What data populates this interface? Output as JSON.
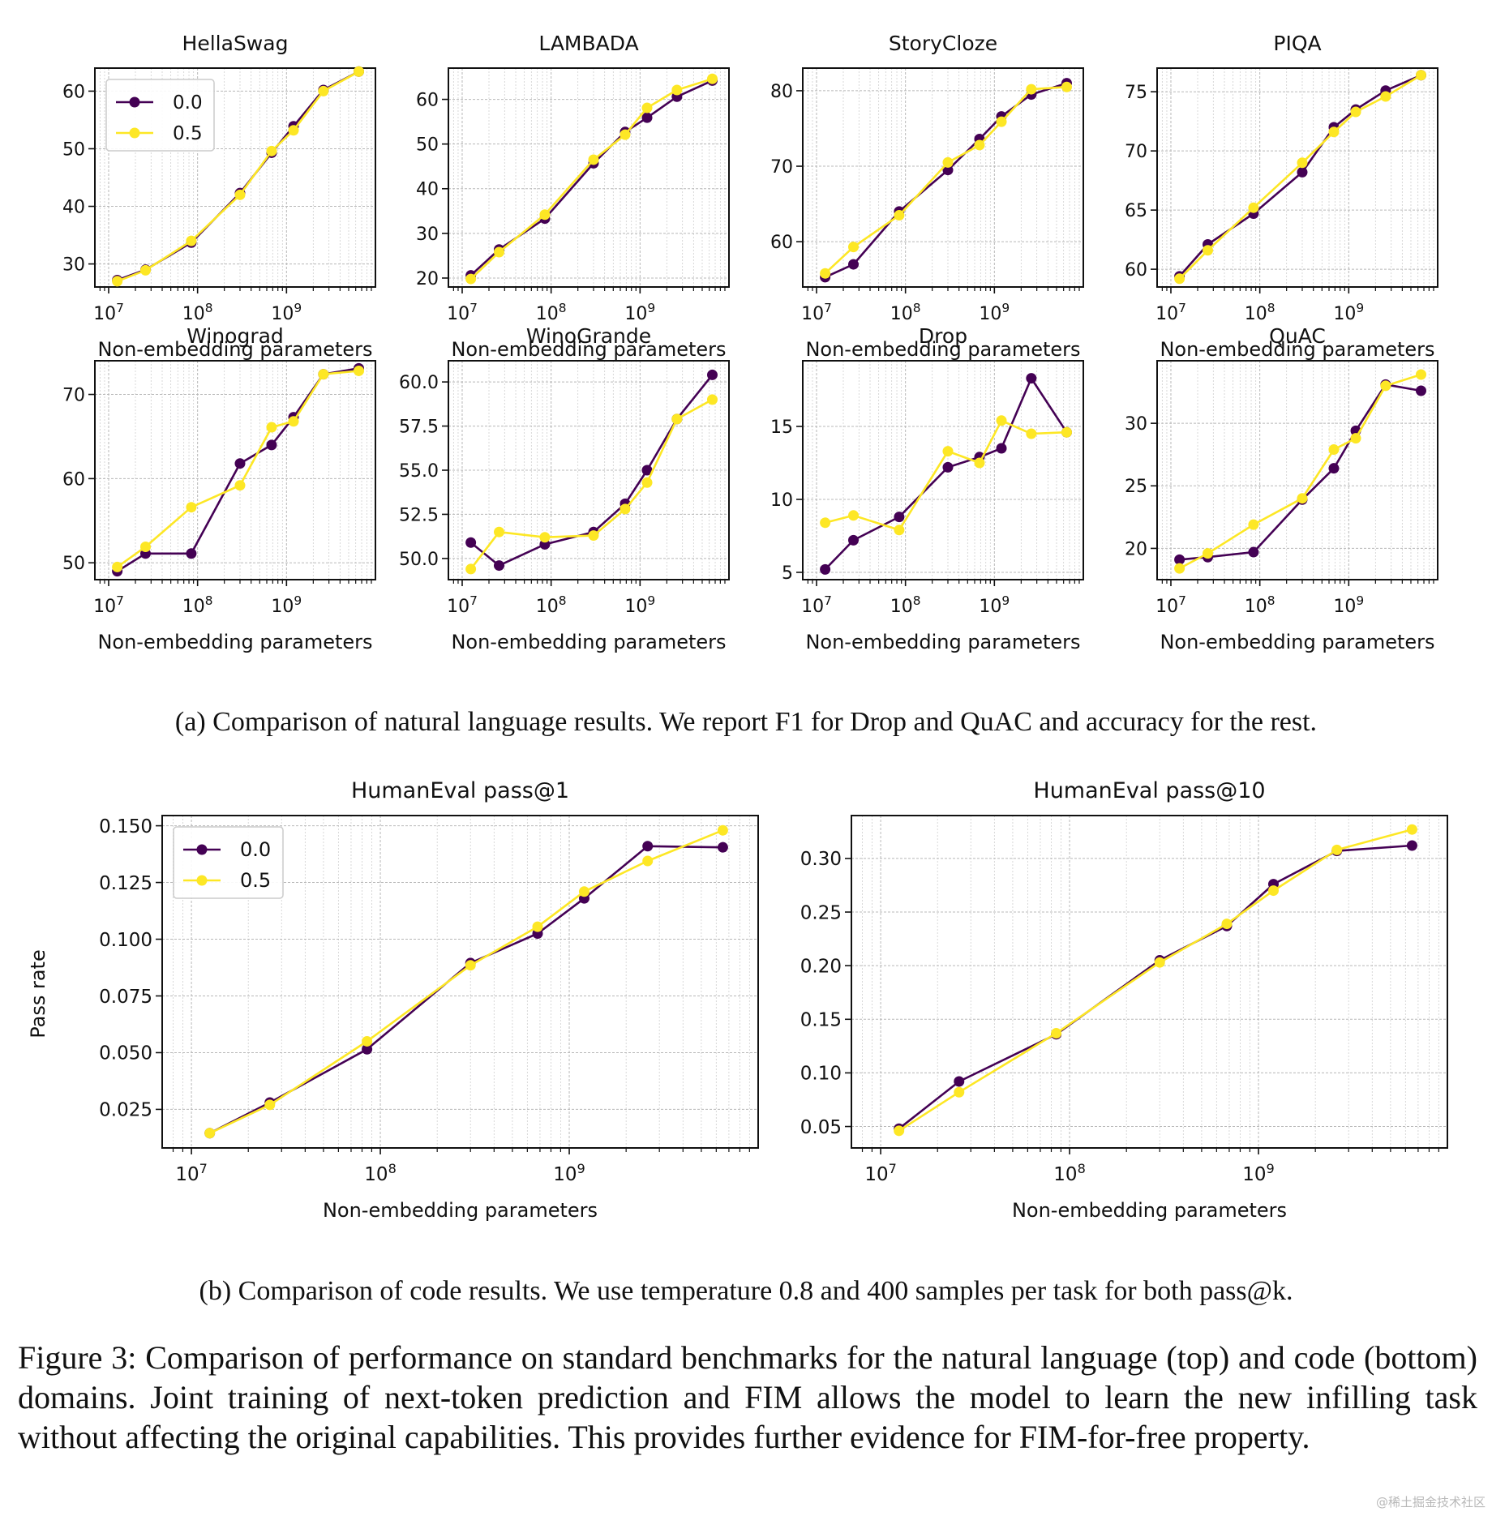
{
  "colors": {
    "series_0": "#440154",
    "series_1": "#fde725"
  },
  "legend_labels": [
    "0.0",
    "0.5"
  ],
  "x_axis_label": "Non-embedding parameters",
  "chart_data": [
    {
      "id": "hellaswag",
      "type": "line",
      "title": "HellaSwag",
      "xlabel": "Non-embedding parameters",
      "ylabel": "",
      "xscale": "log",
      "xlim": [
        7000000.0,
        10000000000.0
      ],
      "ylim": [
        26,
        64
      ],
      "yticks": [
        30,
        40,
        50,
        60
      ],
      "ytick_labels": [
        "30",
        "40",
        "50",
        "60"
      ],
      "legend": "top-left",
      "x": [
        12500000.0,
        26000000.0,
        85000000.0,
        300000000.0,
        680000000.0,
        1200000000.0,
        2600000000.0,
        6500000000.0
      ],
      "series": [
        {
          "name": "0.0",
          "values": [
            27.2,
            29.0,
            33.7,
            42.3,
            49.3,
            53.9,
            60.2,
            63.4
          ]
        },
        {
          "name": "0.5",
          "values": [
            27.0,
            28.9,
            34.0,
            42.0,
            49.6,
            53.2,
            60.0,
            63.4
          ]
        }
      ]
    },
    {
      "id": "lambada",
      "type": "line",
      "title": "LAMBADA",
      "xlabel": "Non-embedding parameters",
      "ylabel": "",
      "xscale": "log",
      "xlim": [
        7000000.0,
        10000000000.0
      ],
      "ylim": [
        18,
        67
      ],
      "yticks": [
        20,
        30,
        40,
        50,
        60
      ],
      "ytick_labels": [
        "20",
        "30",
        "40",
        "50",
        "60"
      ],
      "x": [
        12500000.0,
        26000000.0,
        85000000.0,
        300000000.0,
        680000000.0,
        1200000000.0,
        2600000000.0,
        6500000000.0
      ],
      "series": [
        {
          "name": "0.0",
          "values": [
            20.6,
            26.4,
            33.3,
            45.7,
            52.7,
            55.9,
            60.6,
            64.2
          ]
        },
        {
          "name": "0.5",
          "values": [
            19.8,
            25.8,
            34.2,
            46.5,
            52.1,
            58.1,
            62.1,
            64.6
          ]
        }
      ]
    },
    {
      "id": "storycloze",
      "type": "line",
      "title": "StoryCloze",
      "xlabel": "Non-embedding parameters",
      "ylabel": "",
      "xscale": "log",
      "xlim": [
        7000000.0,
        10000000000.0
      ],
      "ylim": [
        54,
        83
      ],
      "yticks": [
        60,
        70,
        80
      ],
      "ytick_labels": [
        "60",
        "70",
        "80"
      ],
      "x": [
        12500000.0,
        26000000.0,
        85000000.0,
        300000000.0,
        680000000.0,
        1200000000.0,
        2600000000.0,
        6500000000.0
      ],
      "series": [
        {
          "name": "0.0",
          "values": [
            55.3,
            57.0,
            64.0,
            69.5,
            73.6,
            76.6,
            79.5,
            81.0
          ]
        },
        {
          "name": "0.5",
          "values": [
            55.8,
            59.3,
            63.5,
            70.5,
            72.8,
            75.9,
            80.2,
            80.5
          ]
        }
      ]
    },
    {
      "id": "piqa",
      "type": "line",
      "title": "PIQA",
      "xlabel": "Non-embedding parameters",
      "ylabel": "",
      "xscale": "log",
      "xlim": [
        7000000.0,
        10000000000.0
      ],
      "ylim": [
        58.5,
        77
      ],
      "yticks": [
        60,
        65,
        70,
        75
      ],
      "ytick_labels": [
        "60",
        "65",
        "70",
        "75"
      ],
      "x": [
        12500000.0,
        26000000.0,
        85000000.0,
        300000000.0,
        680000000.0,
        1200000000.0,
        2600000000.0,
        6500000000.0
      ],
      "series": [
        {
          "name": "0.0",
          "values": [
            59.4,
            62.1,
            64.7,
            68.2,
            72.0,
            73.5,
            75.1,
            76.4
          ]
        },
        {
          "name": "0.5",
          "values": [
            59.2,
            61.6,
            65.2,
            69.0,
            71.6,
            73.3,
            74.6,
            76.4
          ]
        }
      ]
    },
    {
      "id": "winograd",
      "type": "line",
      "title": "Winograd",
      "xlabel": "Non-embedding parameters",
      "ylabel": "",
      "xscale": "log",
      "xlim": [
        7000000.0,
        10000000000.0
      ],
      "ylim": [
        48,
        74
      ],
      "yticks": [
        50,
        60,
        70
      ],
      "ytick_labels": [
        "50",
        "60",
        "70"
      ],
      "x": [
        12500000.0,
        26000000.0,
        85000000.0,
        300000000.0,
        680000000.0,
        1200000000.0,
        2600000000.0,
        6500000000.0
      ],
      "series": [
        {
          "name": "0.0",
          "values": [
            49.0,
            51.1,
            51.1,
            61.8,
            64.0,
            67.3,
            72.4,
            73.1
          ]
        },
        {
          "name": "0.5",
          "values": [
            49.5,
            51.9,
            56.6,
            59.2,
            66.1,
            66.8,
            72.4,
            72.8
          ]
        }
      ]
    },
    {
      "id": "winogrande",
      "type": "line",
      "title": "WinoGrande",
      "xlabel": "Non-embedding parameters",
      "ylabel": "",
      "xscale": "log",
      "xlim": [
        7000000.0,
        10000000000.0
      ],
      "ylim": [
        48.8,
        61.2
      ],
      "yticks": [
        50.0,
        52.5,
        55.0,
        57.5,
        60.0
      ],
      "ytick_labels": [
        "50.0",
        "52.5",
        "55.0",
        "57.5",
        "60.0"
      ],
      "x": [
        12500000.0,
        26000000.0,
        85000000.0,
        300000000.0,
        680000000.0,
        1200000000.0,
        2600000000.0,
        6500000000.0
      ],
      "series": [
        {
          "name": "0.0",
          "values": [
            50.9,
            49.6,
            50.8,
            51.5,
            53.1,
            55.0,
            57.9,
            60.4
          ]
        },
        {
          "name": "0.5",
          "values": [
            49.4,
            51.5,
            51.2,
            51.3,
            52.8,
            54.3,
            57.9,
            59.0
          ]
        }
      ]
    },
    {
      "id": "drop",
      "type": "line",
      "title": "Drop",
      "xlabel": "Non-embedding parameters",
      "ylabel": "",
      "xscale": "log",
      "xlim": [
        7000000.0,
        10000000000.0
      ],
      "ylim": [
        4.5,
        19.5
      ],
      "yticks": [
        5,
        10,
        15
      ],
      "ytick_labels": [
        "5",
        "10",
        "15"
      ],
      "x": [
        12500000.0,
        26000000.0,
        85000000.0,
        300000000.0,
        680000000.0,
        1200000000.0,
        2600000000.0,
        6500000000.0
      ],
      "series": [
        {
          "name": "0.0",
          "values": [
            5.2,
            7.2,
            8.8,
            12.2,
            12.9,
            13.5,
            18.3,
            14.6
          ]
        },
        {
          "name": "0.5",
          "values": [
            8.4,
            8.9,
            7.9,
            13.3,
            12.5,
            15.4,
            14.5,
            14.6
          ]
        }
      ]
    },
    {
      "id": "quac",
      "type": "line",
      "title": "QuAC",
      "xlabel": "Non-embedding parameters",
      "ylabel": "",
      "xscale": "log",
      "xlim": [
        7000000.0,
        10000000000.0
      ],
      "ylim": [
        17.5,
        35
      ],
      "yticks": [
        20,
        25,
        30
      ],
      "ytick_labels": [
        "20",
        "25",
        "30"
      ],
      "x": [
        12500000.0,
        26000000.0,
        85000000.0,
        300000000.0,
        680000000.0,
        1200000000.0,
        2600000000.0,
        6500000000.0
      ],
      "series": [
        {
          "name": "0.0",
          "values": [
            19.1,
            19.3,
            19.7,
            23.9,
            26.4,
            29.4,
            33.1,
            32.6
          ]
        },
        {
          "name": "0.5",
          "values": [
            18.4,
            19.6,
            21.9,
            24.0,
            27.9,
            28.8,
            33.0,
            33.9
          ]
        }
      ]
    },
    {
      "id": "humaneval-pass1",
      "type": "line",
      "title": "HumanEval pass@1",
      "xlabel": "Non-embedding parameters",
      "ylabel": "Pass rate",
      "xscale": "log",
      "xlim": [
        7000000.0,
        10000000000.0
      ],
      "ylim": [
        0.008,
        0.1545
      ],
      "yticks": [
        0.025,
        0.05,
        0.075,
        0.1,
        0.125,
        0.15
      ],
      "ytick_labels": [
        "0.025",
        "0.050",
        "0.075",
        "0.100",
        "0.125",
        "0.150"
      ],
      "legend": "top-left",
      "x": [
        12500000.0,
        26000000.0,
        85000000.0,
        300000000.0,
        680000000.0,
        1200000000.0,
        2600000000.0,
        6500000000.0
      ],
      "series": [
        {
          "name": "0.0",
          "values": [
            0.0145,
            0.028,
            0.0515,
            0.0895,
            0.1025,
            0.118,
            0.141,
            0.1405
          ]
        },
        {
          "name": "0.5",
          "values": [
            0.0145,
            0.027,
            0.055,
            0.0885,
            0.1055,
            0.121,
            0.1345,
            0.148
          ]
        }
      ]
    },
    {
      "id": "humaneval-pass10",
      "type": "line",
      "title": "HumanEval pass@10",
      "xlabel": "Non-embedding parameters",
      "ylabel": "",
      "xscale": "log",
      "xlim": [
        7000000.0,
        10000000000.0
      ],
      "ylim": [
        0.03,
        0.34
      ],
      "yticks": [
        0.05,
        0.1,
        0.15,
        0.2,
        0.25,
        0.3
      ],
      "ytick_labels": [
        "0.05",
        "0.10",
        "0.15",
        "0.20",
        "0.25",
        "0.30"
      ],
      "x": [
        12500000.0,
        26000000.0,
        85000000.0,
        300000000.0,
        680000000.0,
        1200000000.0,
        2600000000.0,
        6500000000.0
      ],
      "series": [
        {
          "name": "0.0",
          "values": [
            0.048,
            0.092,
            0.136,
            0.205,
            0.237,
            0.276,
            0.307,
            0.312
          ]
        },
        {
          "name": "0.5",
          "values": [
            0.046,
            0.082,
            0.137,
            0.203,
            0.239,
            0.27,
            0.308,
            0.327
          ]
        }
      ]
    }
  ],
  "captions": {
    "a": "(a) Comparison of natural language results. We report F1 for Drop and QuAC and accuracy for the rest.",
    "b": "(b) Comparison of code results. We use temperature 0.8 and 400 samples per task for both pass@k.",
    "figure": "Figure 3: Comparison of performance on standard benchmarks for the natural language (top) and code (bottom) domains. Joint training of next-token prediction and FIM allows the model to learn the new infilling task without affecting the original capabilities. This provides further evidence for FIM-for-free property."
  },
  "watermark": "@稀土掘金技术社区"
}
